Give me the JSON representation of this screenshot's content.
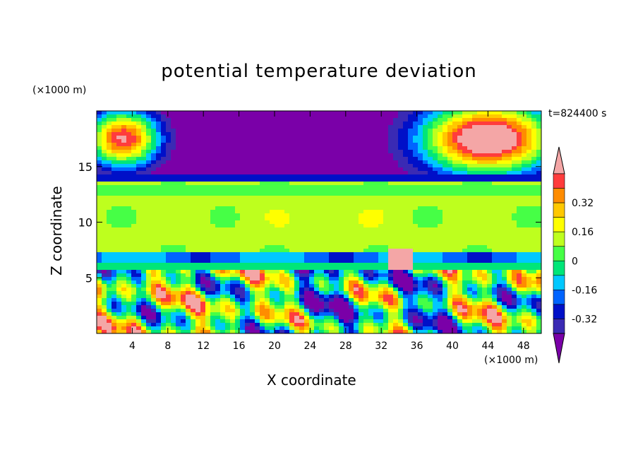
{
  "chart_data": {
    "type": "heatmap",
    "title": "potential temperature deviation",
    "xlabel": "X coordinate",
    "ylabel": "Z coordinate",
    "x_unit_label": "(×1000 m)",
    "y_unit_label": "(×1000 m)",
    "time_label": "t=824400 s",
    "xlim": [
      0,
      50
    ],
    "ylim": [
      0,
      20
    ],
    "x_ticks": [
      "4",
      "8",
      "12",
      "16",
      "20",
      "24",
      "28",
      "32",
      "36",
      "40",
      "44",
      "48"
    ],
    "y_ticks": [
      "5",
      "10",
      "15"
    ],
    "colorbar": {
      "levels": [
        -0.48,
        -0.4,
        -0.32,
        -0.24,
        -0.16,
        -0.08,
        0,
        0.08,
        0.16,
        0.24,
        0.32,
        0.4,
        0.48
      ],
      "labels": [
        "0.32",
        "0.16",
        "0",
        "-0.16",
        "-0.32"
      ],
      "colors": [
        "#7a00a8",
        "#3a2ab4",
        "#0010c8",
        "#0064ff",
        "#00c8ff",
        "#00e678",
        "#46ff46",
        "#beff1e",
        "#ffff00",
        "#ffc800",
        "#ff8c00",
        "#ff3c3c",
        "#f4a6a6"
      ],
      "extends": "both"
    },
    "layers": [
      {
        "z_range": [
          13.8,
          20
        ],
        "dominant_value": "below -0.48",
        "note": "purple with pink patches top-left and top-right"
      },
      {
        "z_range": [
          5.7,
          13.8
        ],
        "dominant_value": "0 to 0.08",
        "note": "green band with cyan and yellow patches"
      },
      {
        "z_range": [
          0,
          5.7
        ],
        "dominant_value": "-0.48 to 0.48",
        "note": "turbulent mixed layer"
      }
    ]
  }
}
